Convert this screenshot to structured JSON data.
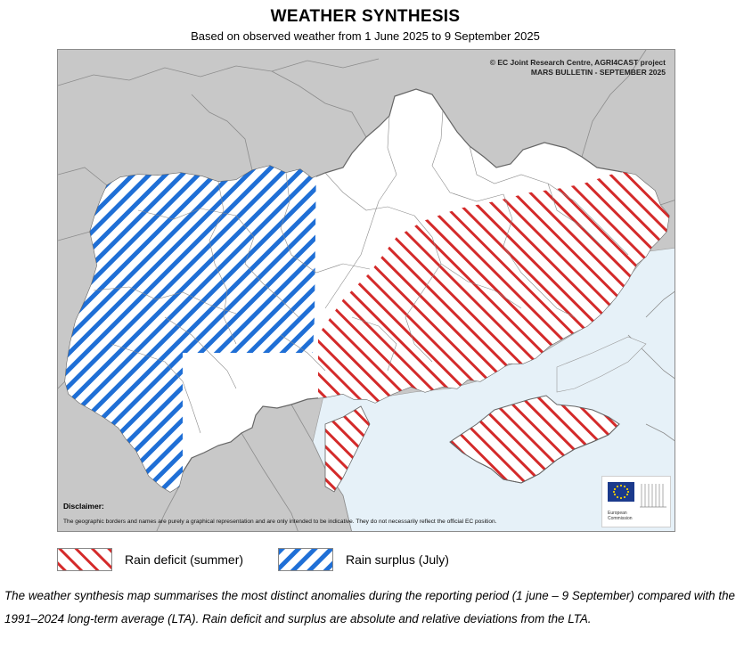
{
  "header": {
    "title": "WEATHER SYNTHESIS",
    "subtitle": "Based on observed weather from 1 June 2025 to 9 September 2025"
  },
  "map": {
    "credit_line1": "© EC Joint Research Centre, AGRI4CAST project",
    "credit_line2": "MARS BULLETIN - SEPTEMBER 2025",
    "disclaimer_title": "Disclaimer:",
    "disclaimer_text": "The geographic borders and names are purely a graphical representation and are only intended to be indicative. They do not necessarily reflect the official EC position.",
    "logo_text_1": "European",
    "logo_text_2": "Commission",
    "colors": {
      "land_outside": "#c8c8c8",
      "sea": "#e6f1f8",
      "country": "#ffffff",
      "deficit": "#d42a2a",
      "surplus": "#1f6fd6",
      "borders": "#8a8a8a"
    }
  },
  "legend": {
    "items": [
      {
        "label": "Rain deficit (summer)",
        "pattern": "deficit-hatch"
      },
      {
        "label": "Rain surplus (July)",
        "pattern": "surplus-hatch"
      }
    ]
  },
  "caption": "The weather synthesis map summarises the most distinct anomalies during the reporting period (1 june – 9 September) compared with the 1991–2024 long-term average (LTA). Rain deficit and surplus are absolute and relative deviations from the LTA."
}
